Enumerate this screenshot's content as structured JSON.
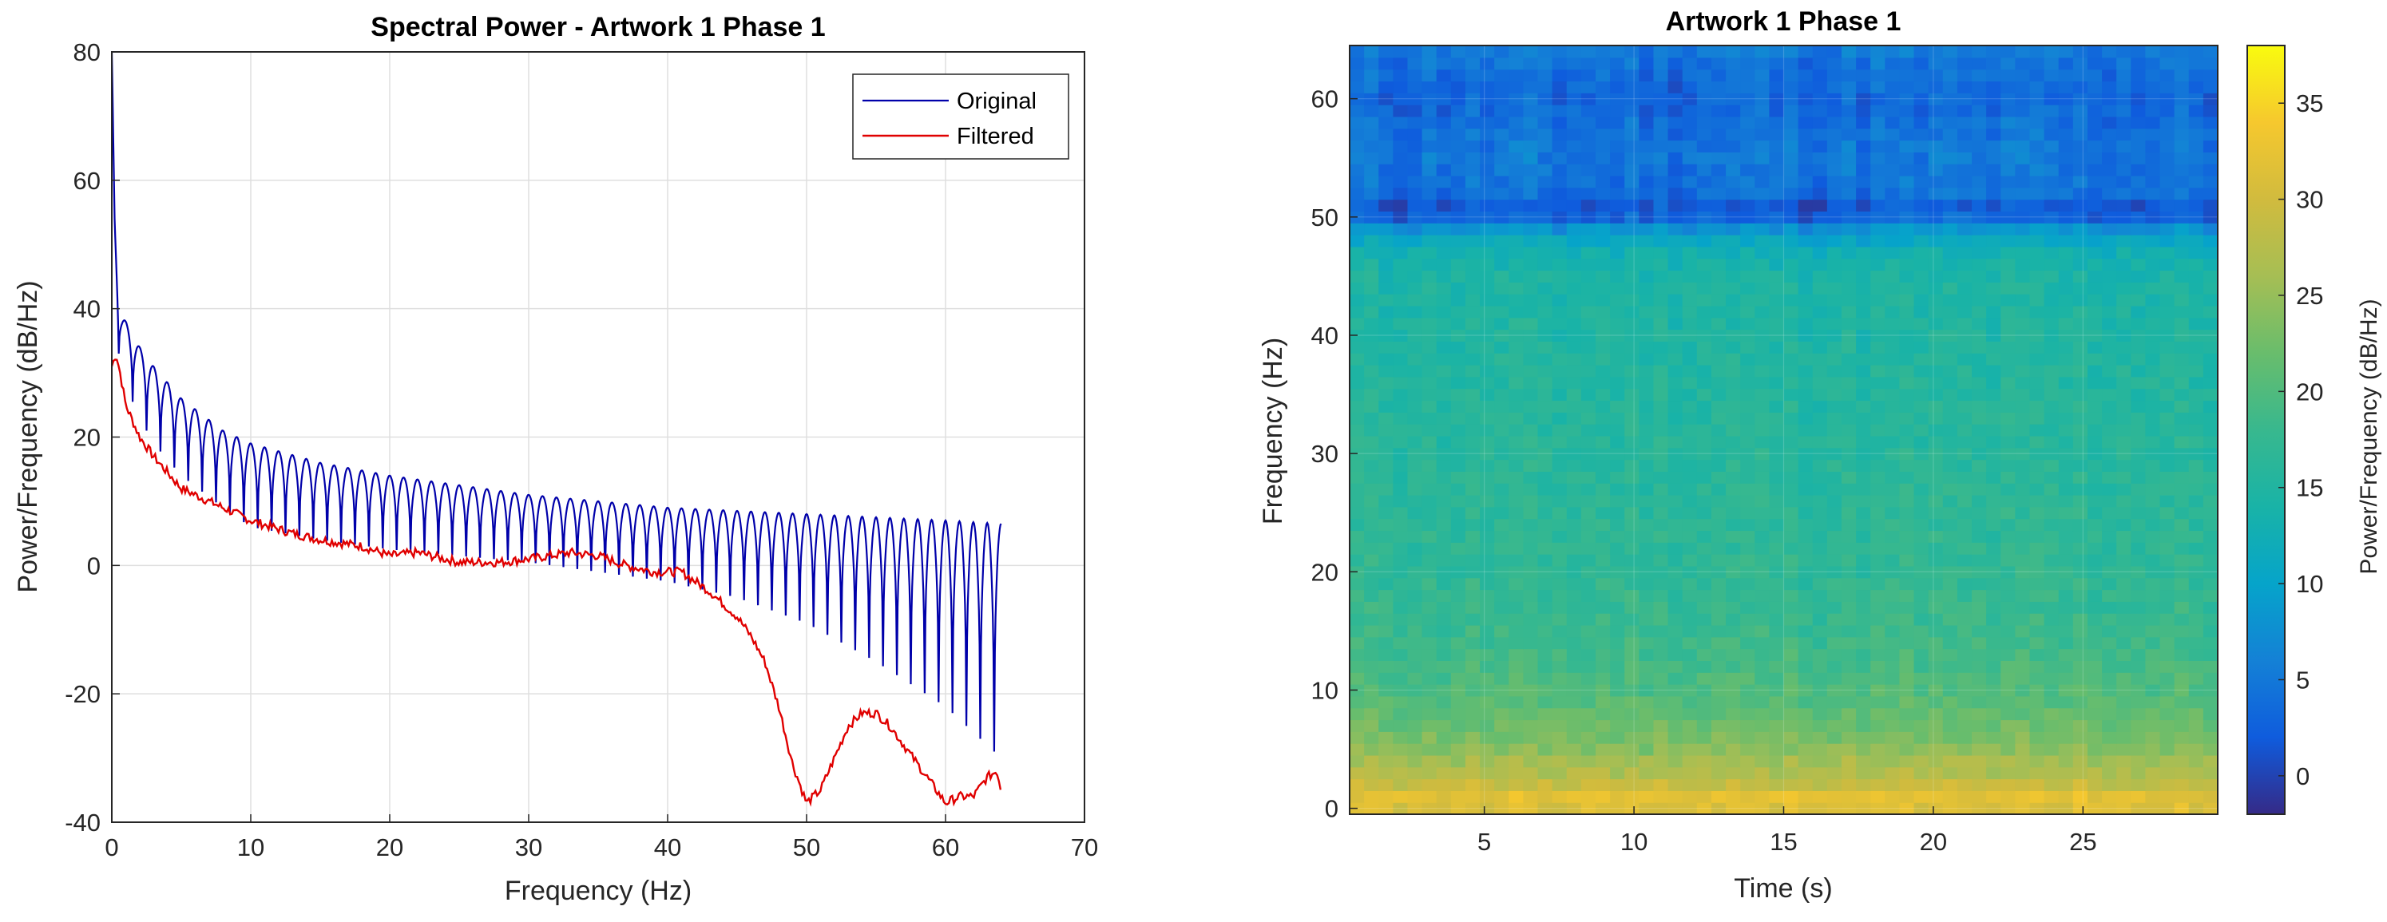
{
  "chart_data": [
    {
      "type": "line",
      "title": "Spectral Power - Artwork 1 Phase 1",
      "xlabel": "Frequency (Hz)",
      "ylabel": "Power/Frequency (dB/Hz)",
      "xlim": [
        0,
        70
      ],
      "ylim": [
        -40,
        80
      ],
      "xticks": [
        "0",
        "10",
        "20",
        "30",
        "40",
        "50",
        "60",
        "70"
      ],
      "yticks": [
        "-40",
        "-20",
        "0",
        "20",
        "40",
        "60",
        "80"
      ],
      "grid": true,
      "legend_position": "top-right",
      "series": [
        {
          "name": "Original",
          "color": "#0000aa",
          "line_style": "comb",
          "x": [
            0.0,
            0.2,
            0.5,
            1.0,
            2.0,
            3.0,
            5.0,
            8.0,
            10.0,
            15.0,
            20.0,
            25.0,
            30.0,
            35.0,
            40.0,
            45.0,
            50.0,
            55.0,
            60.0,
            64.0
          ],
          "y_peak": [
            80,
            55,
            40,
            38,
            34,
            31,
            26,
            21,
            19,
            16,
            14,
            12.5,
            11,
            10,
            9,
            8.5,
            8,
            7.5,
            7,
            6.5
          ],
          "y_trough": [
            80,
            45,
            33,
            28,
            23,
            19,
            14,
            9,
            6,
            4,
            2.5,
            1.5,
            0.5,
            -1,
            -2.5,
            -5,
            -9,
            -15,
            -22,
            -30
          ]
        },
        {
          "name": "Filtered",
          "color": "#e00000",
          "x": [
            0.0,
            0.3,
            0.6,
            1.0,
            2.0,
            3.0,
            5.0,
            7.0,
            10.0,
            13.0,
            15.0,
            18.0,
            20.0,
            22.0,
            25.0,
            28.0,
            30.0,
            33.0,
            35.0,
            37.0,
            39.0,
            41.0,
            43.0,
            45.0,
            46.0,
            47.0,
            48.0,
            49.0,
            50.0,
            51.0,
            52.0,
            53.0,
            54.0,
            55.0,
            56.0,
            57.0,
            58.0,
            59.0,
            60.0,
            61.0,
            62.0,
            63.0,
            63.7,
            64.0
          ],
          "y": [
            31,
            33,
            30,
            25,
            20,
            17,
            12,
            10,
            7,
            5,
            4,
            3,
            1.5,
            2,
            0.5,
            0.5,
            1,
            2,
            1.5,
            0,
            -1,
            -1,
            -4,
            -8,
            -11,
            -15,
            -22,
            -31,
            -37,
            -35,
            -30,
            -25,
            -23,
            -23,
            -25,
            -28,
            -31,
            -34,
            -37,
            -36,
            -36,
            -33,
            -32,
            -35
          ]
        }
      ]
    },
    {
      "type": "heatmap",
      "title": "Artwork 1 Phase 1",
      "xlabel": "Time (s)",
      "ylabel": "Frequency (Hz)",
      "xlim": [
        0.5,
        29.5
      ],
      "ylim": [
        -0.5,
        64.5
      ],
      "xticks": [
        "5",
        "10",
        "15",
        "20",
        "25"
      ],
      "yticks": [
        "0",
        "10",
        "20",
        "30",
        "40",
        "50",
        "60"
      ],
      "colormap": "parula",
      "colorbar": {
        "label": "Power/Frequency (dB/Hz)",
        "range": [
          -2,
          38
        ],
        "ticks": [
          "0",
          "5",
          "10",
          "15",
          "20",
          "25",
          "30",
          "35"
        ]
      },
      "time_bins_s": [
        0.5,
        29.5
      ],
      "freq_bins_hz": [
        0,
        64
      ],
      "mean_power_profile": {
        "freq_hz": [
          0,
          1,
          2,
          3,
          4,
          5,
          7,
          10,
          15,
          20,
          30,
          40,
          45,
          47,
          48,
          49,
          50,
          51,
          52,
          55,
          58,
          60,
          62,
          64
        ],
        "power_db": [
          31,
          32,
          29,
          27,
          26,
          24,
          22,
          20,
          18,
          17,
          16,
          15,
          14.5,
          13,
          11,
          8,
          3,
          2,
          4,
          5,
          4,
          3,
          4,
          5
        ]
      }
    }
  ]
}
